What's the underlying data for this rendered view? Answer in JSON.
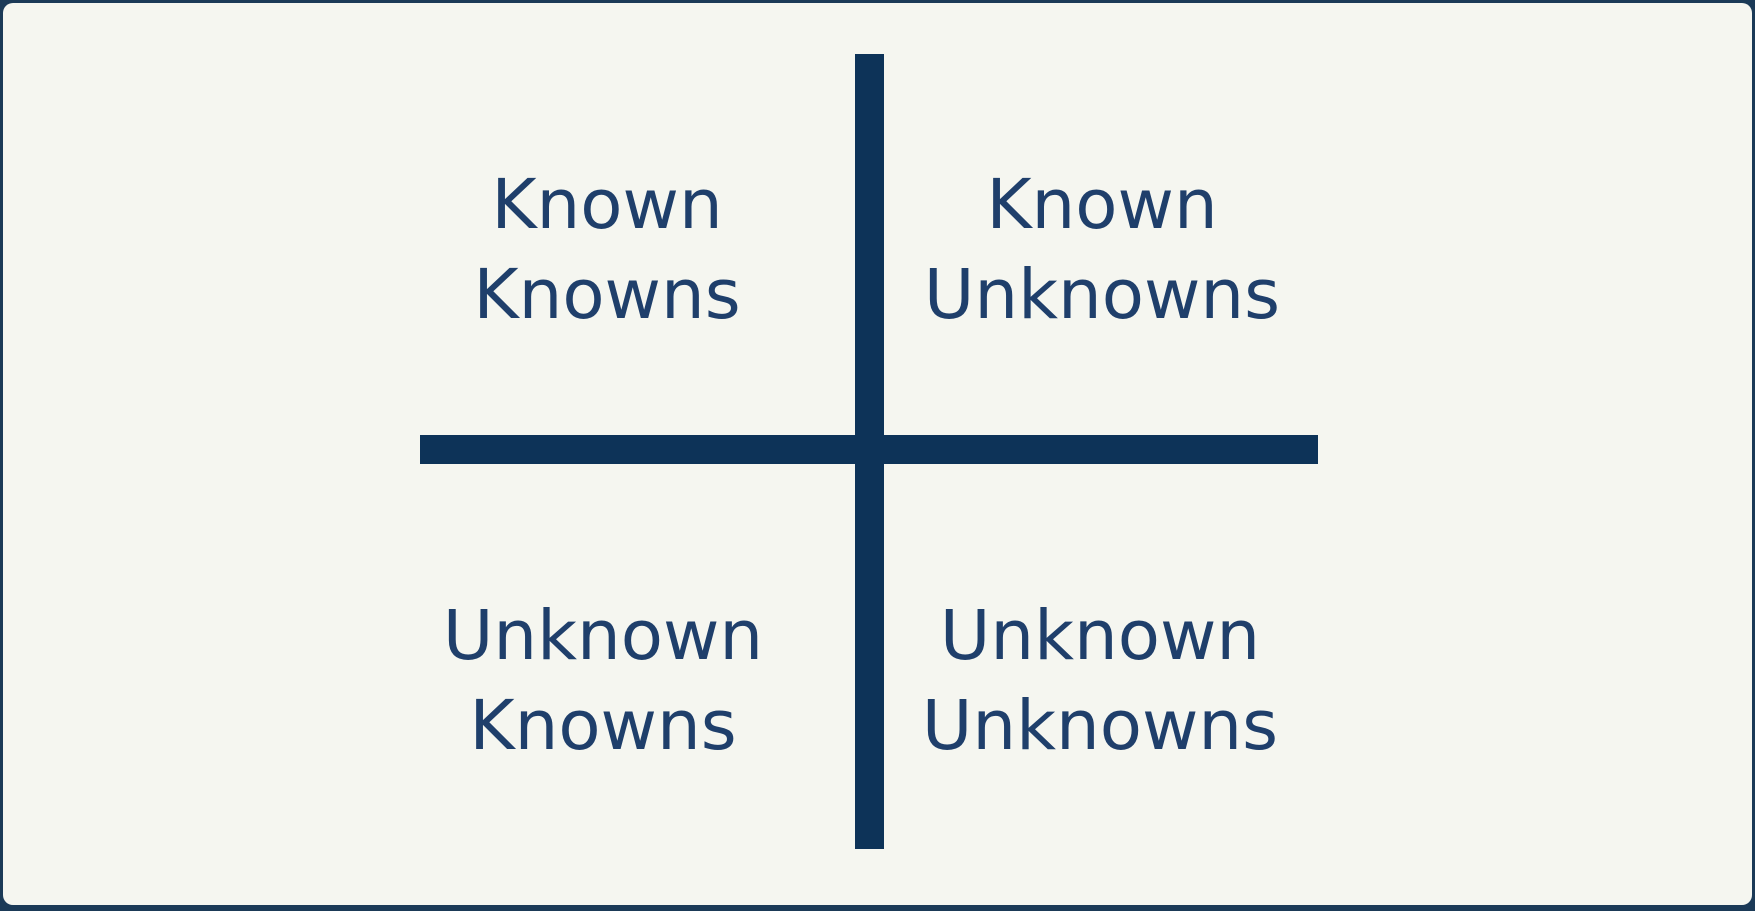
{
  "quadrants": {
    "top_left": {
      "line1": "Known",
      "line2": "Knowns"
    },
    "top_right": {
      "line1": "Known",
      "line2": "Unknowns"
    },
    "bottom_left": {
      "line1": "Unknown",
      "line2": "Knowns"
    },
    "bottom_right": {
      "line1": "Unknown",
      "line2": "Unknowns"
    }
  },
  "colors": {
    "background": "#f5f6f0",
    "axis": "#0d3358",
    "text": "#1f3f6b",
    "frame": "#1b3a57"
  }
}
